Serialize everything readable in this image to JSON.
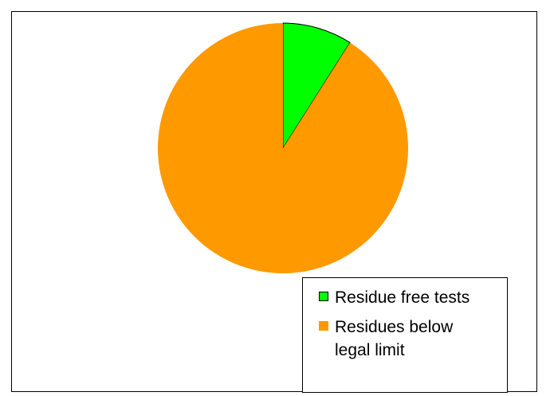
{
  "chart_data": {
    "type": "pie",
    "title": "",
    "slices": [
      {
        "label": "Residue free tests",
        "value": 9,
        "color": "#00ff00"
      },
      {
        "label": "Residues below legal limit",
        "value": 91,
        "color": "#ff9900"
      }
    ],
    "legend_position": "bottom-right",
    "start_angle_deg": 0,
    "direction": "clockwise"
  }
}
